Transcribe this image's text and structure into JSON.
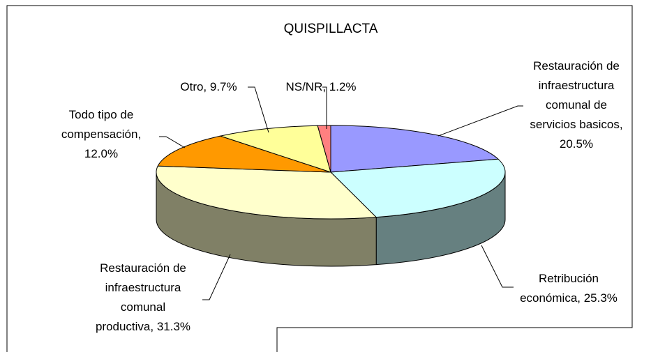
{
  "chart_data": {
    "type": "pie",
    "title": "QUISPILLACTA",
    "categories": [
      "Restauración de infraestructura comunal de servicios basicos",
      "Retribución económica",
      "Restauración de infraestructura comunal productiva",
      "Todo tipo de compensación",
      "Otro",
      "NS/NR"
    ],
    "values": [
      20.5,
      25.3,
      31.3,
      12.0,
      9.7,
      1.2
    ],
    "value_labels": [
      "Restauración de\ninfraestructura\ncomunal de\nservicios basicos,\n20.5%",
      "Retribución\neconómica, 25.3%",
      "Restauración de\ninfraestructura\ncomunal\nproductiva, 31.3%",
      "Todo tipo de\ncompensación,\n12.0%",
      "Otro, 9.7%",
      "NS/NR, 1.2%"
    ],
    "colors": [
      "#9999ff",
      "#ccffff",
      "#ffffcc",
      "#ff9900",
      "#ffff99",
      "#ff8080"
    ],
    "three_d": true
  }
}
